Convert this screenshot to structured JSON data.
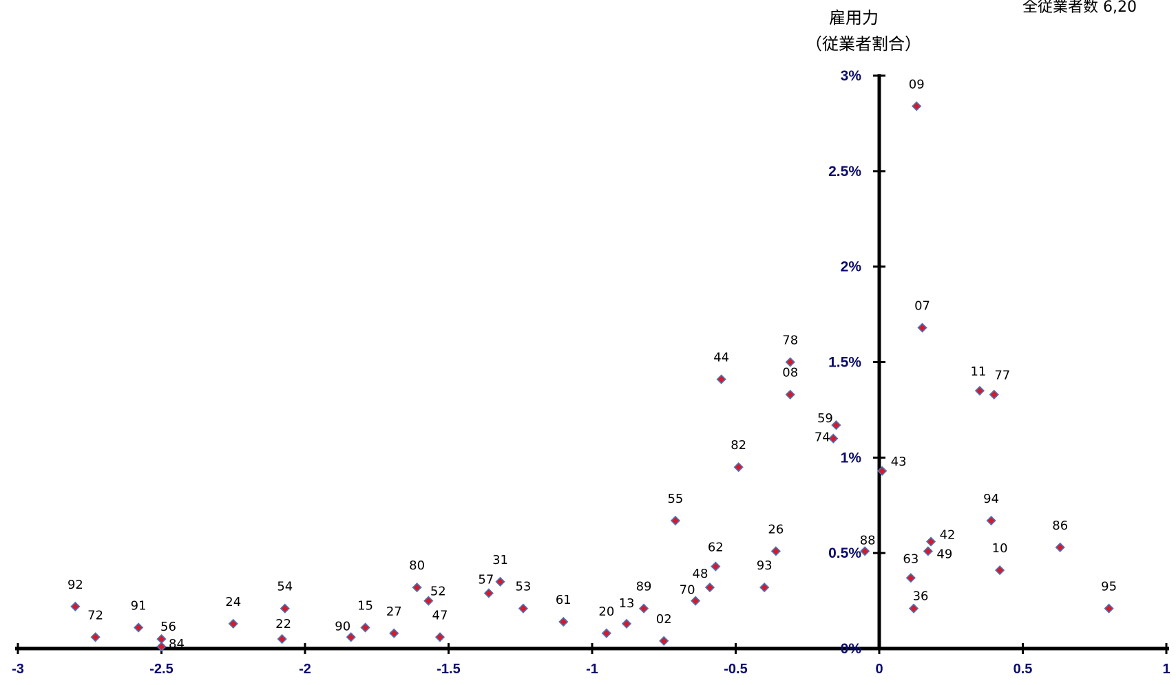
{
  "header": {
    "title": "雇用力",
    "title_partial": "",
    "corner_note": "全従業者数 6,20"
  },
  "chart_data": {
    "type": "scatter",
    "title": "",
    "xlabel": "",
    "ylabel": "雇用力",
    "ylabel_sub": "（従業者割合）",
    "xlim": [
      -3,
      1
    ],
    "ylim": [
      0,
      3
    ],
    "x_ticks": [
      "-3",
      "-2.5",
      "-2",
      "-1.5",
      "-1",
      "-0.5",
      "0",
      "0.5",
      "1"
    ],
    "y_ticks": [
      "0%",
      "0.5%",
      "1%",
      "1.5%",
      "2%",
      "2.5%",
      "3%"
    ],
    "marker_color": "#d7192a",
    "marker_border": "#4a74b8",
    "axis_color": "#000000",
    "tick_color": "#0b0b6e",
    "points": [
      {
        "label": "09",
        "x": 0.13,
        "y": 2.84
      },
      {
        "label": "07",
        "x": 0.15,
        "y": 1.68
      },
      {
        "label": "78",
        "x": -0.31,
        "y": 1.5
      },
      {
        "label": "44",
        "x": -0.55,
        "y": 1.41
      },
      {
        "label": "08",
        "x": -0.31,
        "y": 1.33
      },
      {
        "label": "11",
        "x": 0.35,
        "y": 1.35
      },
      {
        "label": "77",
        "x": 0.4,
        "y": 1.33
      },
      {
        "label": "59",
        "x": -0.15,
        "y": 1.17
      },
      {
        "label": "74",
        "x": -0.16,
        "y": 1.1
      },
      {
        "label": "82",
        "x": -0.49,
        "y": 0.95
      },
      {
        "label": "43",
        "x": 0.01,
        "y": 0.93
      },
      {
        "label": "55",
        "x": -0.71,
        "y": 0.67
      },
      {
        "label": "94",
        "x": 0.39,
        "y": 0.67
      },
      {
        "label": "26",
        "x": -0.36,
        "y": 0.51
      },
      {
        "label": "88",
        "x": -0.05,
        "y": 0.51
      },
      {
        "label": "42",
        "x": 0.18,
        "y": 0.56
      },
      {
        "label": "49",
        "x": 0.17,
        "y": 0.51
      },
      {
        "label": "86",
        "x": 0.63,
        "y": 0.53
      },
      {
        "label": "10",
        "x": 0.42,
        "y": 0.41
      },
      {
        "label": "62",
        "x": -0.57,
        "y": 0.43
      },
      {
        "label": "63",
        "x": 0.11,
        "y": 0.37
      },
      {
        "label": "48",
        "x": -0.59,
        "y": 0.32
      },
      {
        "label": "93",
        "x": -0.4,
        "y": 0.32
      },
      {
        "label": "70",
        "x": -0.64,
        "y": 0.25
      },
      {
        "label": "89",
        "x": -0.82,
        "y": 0.21
      },
      {
        "label": "13",
        "x": -0.88,
        "y": 0.13
      },
      {
        "label": "20",
        "x": -0.95,
        "y": 0.08
      },
      {
        "label": "02",
        "x": -0.75,
        "y": 0.04
      },
      {
        "label": "36",
        "x": 0.12,
        "y": 0.21
      },
      {
        "label": "95",
        "x": 0.8,
        "y": 0.21
      },
      {
        "label": "61",
        "x": -1.1,
        "y": 0.14
      },
      {
        "label": "53",
        "x": -1.24,
        "y": 0.21
      },
      {
        "label": "31",
        "x": -1.32,
        "y": 0.35
      },
      {
        "label": "57",
        "x": -1.36,
        "y": 0.29
      },
      {
        "label": "80",
        "x": -1.61,
        "y": 0.32
      },
      {
        "label": "52",
        "x": -1.57,
        "y": 0.25
      },
      {
        "label": "47",
        "x": -1.53,
        "y": 0.06
      },
      {
        "label": "27",
        "x": -1.69,
        "y": 0.08
      },
      {
        "label": "15",
        "x": -1.79,
        "y": 0.11
      },
      {
        "label": "90",
        "x": -1.84,
        "y": 0.06
      },
      {
        "label": "54",
        "x": -2.07,
        "y": 0.21
      },
      {
        "label": "22",
        "x": -2.08,
        "y": 0.05
      },
      {
        "label": "24",
        "x": -2.25,
        "y": 0.13
      },
      {
        "label": "56",
        "x": -2.5,
        "y": 0.05
      },
      {
        "label": "84",
        "x": -2.5,
        "y": 0.01
      },
      {
        "label": "91",
        "x": -2.58,
        "y": 0.11
      },
      {
        "label": "72",
        "x": -2.73,
        "y": 0.06
      },
      {
        "label": "92",
        "x": -2.8,
        "y": 0.22
      }
    ]
  }
}
